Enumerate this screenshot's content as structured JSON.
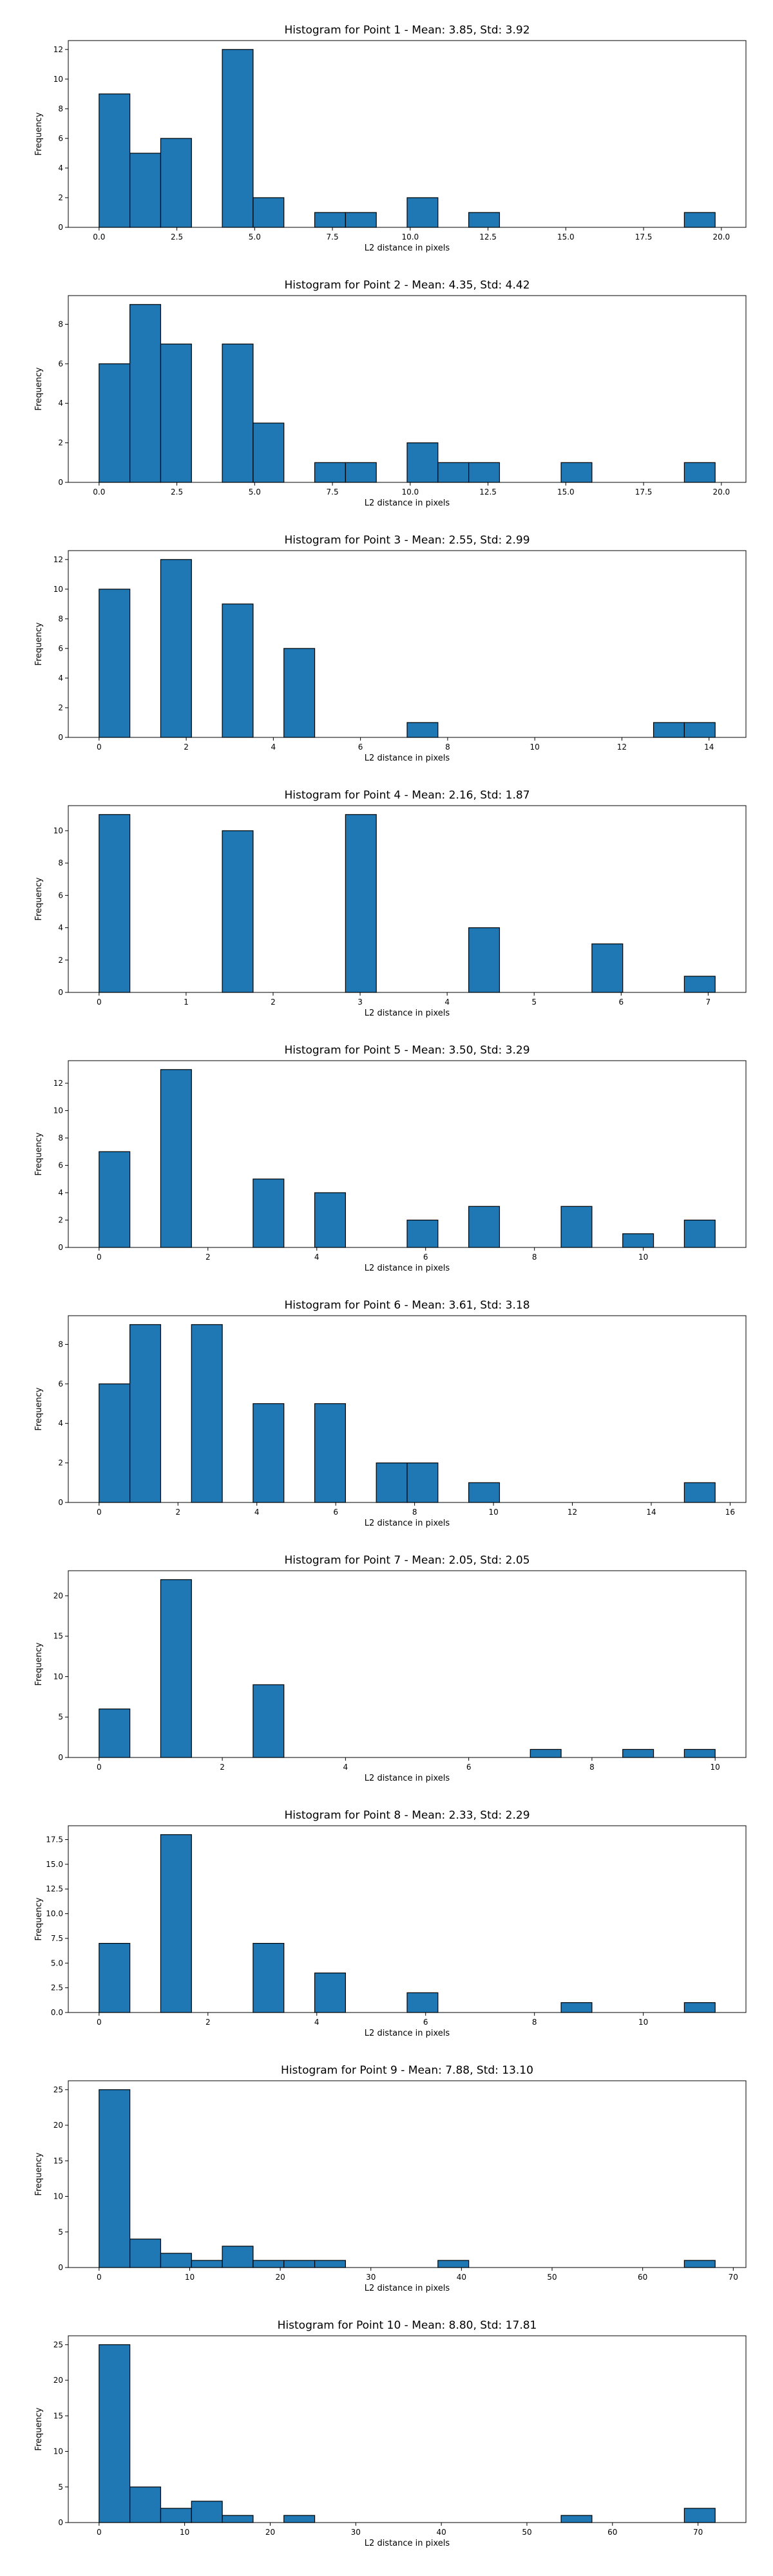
{
  "chart_data": [
    {
      "type": "bar",
      "title": "Histogram for Point 1 - Mean: 3.85, Std: 3.92",
      "xlabel": "L2 distance in pixels",
      "ylabel": "Frequency",
      "bin_start": 0.0,
      "bin_width": 0.99,
      "values": [
        9,
        5,
        6,
        0,
        12,
        2,
        0,
        1,
        1,
        0,
        2,
        0,
        1,
        0,
        0,
        0,
        0,
        0,
        0,
        1
      ],
      "xlim": [
        -0.99,
        20.79
      ],
      "ylim": [
        0,
        12.6
      ],
      "xticks": [
        0.0,
        2.5,
        5.0,
        7.5,
        10.0,
        12.5,
        15.0,
        17.5,
        20.0
      ],
      "xtick_labels": [
        "0.0",
        "2.5",
        "5.0",
        "7.5",
        "10.0",
        "12.5",
        "15.0",
        "17.5",
        "20.0"
      ],
      "yticks": [
        0,
        2,
        4,
        6,
        8,
        10,
        12
      ],
      "ytick_labels": [
        "0",
        "2",
        "4",
        "6",
        "8",
        "10",
        "12"
      ]
    },
    {
      "type": "bar",
      "title": "Histogram for Point 2 - Mean: 4.35, Std: 4.42",
      "xlabel": "L2 distance in pixels",
      "ylabel": "Frequency",
      "bin_start": 0.0,
      "bin_width": 0.99,
      "values": [
        6,
        9,
        7,
        0,
        7,
        3,
        0,
        1,
        1,
        0,
        2,
        1,
        1,
        0,
        0,
        1,
        0,
        0,
        0,
        1
      ],
      "xlim": [
        -0.99,
        20.79
      ],
      "ylim": [
        0,
        9.45
      ],
      "xticks": [
        0.0,
        2.5,
        5.0,
        7.5,
        10.0,
        12.5,
        15.0,
        17.5,
        20.0
      ],
      "xtick_labels": [
        "0.0",
        "2.5",
        "5.0",
        "7.5",
        "10.0",
        "12.5",
        "15.0",
        "17.5",
        "20.0"
      ],
      "yticks": [
        0,
        2,
        4,
        6,
        8
      ],
      "ytick_labels": [
        "0",
        "2",
        "4",
        "6",
        "8"
      ]
    },
    {
      "type": "bar",
      "title": "Histogram for Point 3 - Mean: 2.55, Std: 2.99",
      "xlabel": "L2 distance in pixels",
      "ylabel": "Frequency",
      "bin_start": 0.0,
      "bin_width": 0.707,
      "values": [
        10,
        0,
        12,
        0,
        9,
        0,
        6,
        0,
        0,
        0,
        1,
        0,
        0,
        0,
        0,
        0,
        0,
        0,
        1,
        1
      ],
      "xlim": [
        -0.707,
        14.847
      ],
      "ylim": [
        0,
        12.6
      ],
      "xticks": [
        0,
        2,
        4,
        6,
        8,
        10,
        12,
        14
      ],
      "xtick_labels": [
        "0",
        "2",
        "4",
        "6",
        "8",
        "10",
        "12",
        "14"
      ],
      "yticks": [
        0,
        2,
        4,
        6,
        8,
        10,
        12
      ],
      "ytick_labels": [
        "0",
        "2",
        "4",
        "6",
        "8",
        "10",
        "12"
      ]
    },
    {
      "type": "bar",
      "title": "Histogram for Point 4 - Mean: 2.16, Std: 1.87",
      "xlabel": "L2 distance in pixels",
      "ylabel": "Frequency",
      "bin_start": 0.0,
      "bin_width": 0.354,
      "values": [
        11,
        0,
        0,
        0,
        10,
        0,
        0,
        0,
        11,
        0,
        0,
        0,
        4,
        0,
        0,
        0,
        3,
        0,
        0,
        1
      ],
      "xlim": [
        -0.354,
        7.434
      ],
      "ylim": [
        0,
        11.55
      ],
      "xticks": [
        0,
        1,
        2,
        3,
        4,
        5,
        6,
        7
      ],
      "xtick_labels": [
        "0",
        "1",
        "2",
        "3",
        "4",
        "5",
        "6",
        "7"
      ],
      "yticks": [
        0,
        2,
        4,
        6,
        8,
        10
      ],
      "ytick_labels": [
        "0",
        "2",
        "4",
        "6",
        "8",
        "10"
      ]
    },
    {
      "type": "bar",
      "title": "Histogram for Point 5 - Mean: 3.50, Std: 3.29",
      "xlabel": "L2 distance in pixels",
      "ylabel": "Frequency",
      "bin_start": 0.0,
      "bin_width": 0.566,
      "values": [
        7,
        0,
        13,
        0,
        0,
        5,
        0,
        4,
        0,
        0,
        2,
        0,
        3,
        0,
        0,
        3,
        0,
        1,
        0,
        2
      ],
      "xlim": [
        -0.566,
        11.886
      ],
      "ylim": [
        0,
        13.65
      ],
      "xticks": [
        0,
        2,
        4,
        6,
        8,
        10
      ],
      "xtick_labels": [
        "0",
        "2",
        "4",
        "6",
        "8",
        "10"
      ],
      "yticks": [
        0,
        2,
        4,
        6,
        8,
        10,
        12
      ],
      "ytick_labels": [
        "0",
        "2",
        "4",
        "6",
        "8",
        "10",
        "12"
      ]
    },
    {
      "type": "bar",
      "title": "Histogram for Point 6 - Mean: 3.61, Std: 3.18",
      "xlabel": "L2 distance in pixels",
      "ylabel": "Frequency",
      "bin_start": 0.0,
      "bin_width": 0.781,
      "values": [
        6,
        9,
        0,
        9,
        0,
        5,
        0,
        5,
        0,
        2,
        2,
        0,
        1,
        0,
        0,
        0,
        0,
        0,
        0,
        1
      ],
      "xlim": [
        -0.781,
        16.401
      ],
      "ylim": [
        0,
        9.45
      ],
      "xticks": [
        0,
        2,
        4,
        6,
        8,
        10,
        12,
        14,
        16
      ],
      "xtick_labels": [
        "0",
        "2",
        "4",
        "6",
        "8",
        "10",
        "12",
        "14",
        "16"
      ],
      "yticks": [
        0,
        2,
        4,
        6,
        8
      ],
      "ytick_labels": [
        "0",
        "2",
        "4",
        "6",
        "8"
      ]
    },
    {
      "type": "bar",
      "title": "Histogram for Point 7 - Mean: 2.05, Std: 2.05",
      "xlabel": "L2 distance in pixels",
      "ylabel": "Frequency",
      "bin_start": 0.0,
      "bin_width": 0.5,
      "values": [
        6,
        0,
        22,
        0,
        0,
        9,
        0,
        0,
        0,
        0,
        0,
        0,
        0,
        0,
        1,
        0,
        0,
        1,
        0,
        1
      ],
      "xlim": [
        -0.5,
        10.5
      ],
      "ylim": [
        0,
        23.1
      ],
      "xticks": [
        0,
        2,
        4,
        6,
        8,
        10
      ],
      "xtick_labels": [
        "0",
        "2",
        "4",
        "6",
        "8",
        "10"
      ],
      "yticks": [
        0,
        5,
        10,
        15,
        20
      ],
      "ytick_labels": [
        "0",
        "5",
        "10",
        "15",
        "20"
      ]
    },
    {
      "type": "bar",
      "title": "Histogram for Point 8 - Mean: 2.33, Std: 2.29",
      "xlabel": "L2 distance in pixels",
      "ylabel": "Frequency",
      "bin_start": 0.0,
      "bin_width": 0.566,
      "values": [
        7,
        0,
        18,
        0,
        0,
        7,
        0,
        4,
        0,
        0,
        2,
        0,
        0,
        0,
        0,
        1,
        0,
        0,
        0,
        1
      ],
      "xlim": [
        -0.566,
        11.886
      ],
      "ylim": [
        0,
        18.9
      ],
      "xticks": [
        0,
        2,
        4,
        6,
        8,
        10
      ],
      "xtick_labels": [
        "0",
        "2",
        "4",
        "6",
        "8",
        "10"
      ],
      "yticks": [
        0,
        2.5,
        5,
        7.5,
        10,
        12.5,
        15,
        17.5
      ],
      "ytick_labels": [
        "0.0",
        "2.5",
        "5.0",
        "7.5",
        "10.0",
        "12.5",
        "15.0",
        "17.5"
      ]
    },
    {
      "type": "bar",
      "title": "Histogram for Point 9 - Mean: 7.88, Std: 13.10",
      "xlabel": "L2 distance in pixels",
      "ylabel": "Frequency",
      "bin_start": 0.0,
      "bin_width": 3.4,
      "values": [
        25,
        4,
        2,
        1,
        3,
        1,
        1,
        1,
        0,
        0,
        0,
        1,
        0,
        0,
        0,
        0,
        0,
        0,
        0,
        1
      ],
      "xlim": [
        -3.4,
        71.4
      ],
      "ylim": [
        0,
        26.25
      ],
      "xticks": [
        0,
        10,
        20,
        30,
        40,
        50,
        60,
        70
      ],
      "xtick_labels": [
        "0",
        "10",
        "20",
        "30",
        "40",
        "50",
        "60",
        "70"
      ],
      "yticks": [
        0,
        5,
        10,
        15,
        20,
        25
      ],
      "ytick_labels": [
        "0",
        "5",
        "10",
        "15",
        "20",
        "25"
      ]
    },
    {
      "type": "bar",
      "title": "Histogram for Point 10 - Mean: 8.80, Std: 17.81",
      "xlabel": "L2 distance in pixels",
      "ylabel": "Frequency",
      "bin_start": 0.0,
      "bin_width": 3.6,
      "values": [
        25,
        5,
        2,
        3,
        1,
        0,
        1,
        0,
        0,
        0,
        0,
        0,
        0,
        0,
        0,
        1,
        0,
        0,
        0,
        2
      ],
      "xlim": [
        -3.6,
        75.6
      ],
      "ylim": [
        0,
        26.25
      ],
      "xticks": [
        0,
        10,
        20,
        30,
        40,
        50,
        60,
        70
      ],
      "xtick_labels": [
        "0",
        "10",
        "20",
        "30",
        "40",
        "50",
        "60",
        "70"
      ],
      "yticks": [
        0,
        5,
        10,
        15,
        20,
        25
      ],
      "ytick_labels": [
        "0",
        "5",
        "10",
        "15",
        "20",
        "25"
      ]
    }
  ]
}
